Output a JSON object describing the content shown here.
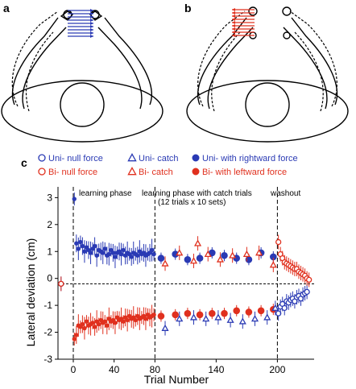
{
  "panels": {
    "a": {
      "letter": "a"
    },
    "b": {
      "letter": "b"
    },
    "c": {
      "letter": "c"
    }
  },
  "colors": {
    "blue": "#2a3ab4",
    "red": "#e0301e",
    "black": "#000000"
  },
  "legend": [
    {
      "label": "Uni- null force",
      "marker": "open-circle",
      "color": "#2a3ab4"
    },
    {
      "label": "Uni- catch",
      "marker": "open-triangle",
      "color": "#2a3ab4"
    },
    {
      "label": "Uni- with rightward force",
      "marker": "filled-circle",
      "color": "#2a3ab4"
    },
    {
      "label": "Bi- null force",
      "marker": "open-circle",
      "color": "#e0301e"
    },
    {
      "label": "Bi- catch",
      "marker": "open-triangle",
      "color": "#e0301e"
    },
    {
      "label": "Bi- with leftward force",
      "marker": "filled-circle",
      "color": "#e0301e"
    }
  ],
  "phases": {
    "learning": "learning phase",
    "catch_line1": "learning phase with catch trials",
    "catch_line2": "(12 trials x 10 sets)",
    "washout": "washout"
  },
  "chart_data": {
    "type": "scatter",
    "xlabel": "Trial Number",
    "ylabel": "Lateral deviation (cm)",
    "xlim": [
      -15,
      236
    ],
    "ylim": [
      -3,
      3.4
    ],
    "xticks": [
      0,
      40,
      80,
      140,
      200
    ],
    "yticks": [
      -3,
      -2,
      -1,
      0,
      1,
      2,
      3
    ],
    "reference_line_y": -0.2,
    "phase_boundaries_x": [
      0,
      80,
      200
    ],
    "series": [
      {
        "name": "Uni- with rightward force",
        "marker": "filled-circle",
        "color": "#2a3ab4",
        "size": "small",
        "points": [
          [
            1,
            2.95
          ],
          [
            3,
            1.3
          ],
          [
            5,
            1.1
          ],
          [
            7,
            1.35
          ],
          [
            9,
            1.2
          ],
          [
            11,
            1.0
          ],
          [
            13,
            1.15
          ],
          [
            15,
            1.05
          ],
          [
            17,
            0.95
          ],
          [
            19,
            1.1
          ],
          [
            21,
            1.2
          ],
          [
            23,
            0.85
          ],
          [
            25,
            1.05
          ],
          [
            27,
            1.0
          ],
          [
            29,
            0.95
          ],
          [
            31,
            1.1
          ],
          [
            33,
            0.85
          ],
          [
            35,
            0.9
          ],
          [
            37,
            1.05
          ],
          [
            39,
            0.95
          ],
          [
            41,
            0.8
          ],
          [
            43,
            0.95
          ],
          [
            45,
            1.0
          ],
          [
            47,
            0.9
          ],
          [
            49,
            1.05
          ],
          [
            51,
            0.85
          ],
          [
            53,
            0.95
          ],
          [
            55,
            0.9
          ],
          [
            57,
            0.8
          ],
          [
            59,
            0.95
          ],
          [
            61,
            0.9
          ],
          [
            63,
            0.85
          ],
          [
            65,
            1.0
          ],
          [
            67,
            0.9
          ],
          [
            69,
            0.95
          ],
          [
            71,
            0.85
          ],
          [
            73,
            0.9
          ],
          [
            75,
            0.95
          ],
          [
            77,
            1.05
          ],
          [
            79,
            0.9
          ]
        ]
      },
      {
        "name": "Bi- with leftward force",
        "marker": "filled-circle",
        "color": "#e0301e",
        "size": "small",
        "points": [
          [
            1,
            -2.25
          ],
          [
            3,
            -2.1
          ],
          [
            5,
            -1.75
          ],
          [
            7,
            -1.8
          ],
          [
            9,
            -1.7
          ],
          [
            11,
            -1.85
          ],
          [
            13,
            -1.6
          ],
          [
            15,
            -1.75
          ],
          [
            17,
            -1.7
          ],
          [
            19,
            -1.65
          ],
          [
            21,
            -1.8
          ],
          [
            23,
            -1.6
          ],
          [
            25,
            -1.7
          ],
          [
            27,
            -1.55
          ],
          [
            29,
            -1.65
          ],
          [
            31,
            -1.6
          ],
          [
            33,
            -1.75
          ],
          [
            35,
            -1.5
          ],
          [
            37,
            -1.6
          ],
          [
            39,
            -1.55
          ],
          [
            41,
            -1.65
          ],
          [
            43,
            -1.45
          ],
          [
            45,
            -1.55
          ],
          [
            47,
            -1.5
          ],
          [
            49,
            -1.6
          ],
          [
            51,
            -1.45
          ],
          [
            53,
            -1.55
          ],
          [
            55,
            -1.4
          ],
          [
            57,
            -1.5
          ],
          [
            59,
            -1.45
          ],
          [
            61,
            -1.55
          ],
          [
            63,
            -1.4
          ],
          [
            65,
            -1.5
          ],
          [
            67,
            -1.45
          ],
          [
            69,
            -1.4
          ],
          [
            71,
            -1.5
          ],
          [
            73,
            -1.35
          ],
          [
            75,
            -1.45
          ],
          [
            77,
            -1.4
          ],
          [
            79,
            -1.35
          ]
        ]
      },
      {
        "name": "Uni- with rightward force (catch phase)",
        "marker": "filled-circle",
        "color": "#2a3ab4",
        "size": "large",
        "points": [
          [
            86,
            0.75
          ],
          [
            100,
            0.9
          ],
          [
            112,
            0.7
          ],
          [
            124,
            0.75
          ],
          [
            136,
            0.95
          ],
          [
            148,
            0.85
          ],
          [
            160,
            0.75
          ],
          [
            172,
            0.7
          ],
          [
            184,
            0.95
          ],
          [
            196,
            0.8
          ]
        ]
      },
      {
        "name": "Bi- with leftward force (catch phase)",
        "marker": "filled-circle",
        "color": "#e0301e",
        "size": "large",
        "points": [
          [
            86,
            -1.4
          ],
          [
            100,
            -1.35
          ],
          [
            112,
            -1.3
          ],
          [
            124,
            -1.35
          ],
          [
            136,
            -1.3
          ],
          [
            148,
            -1.3
          ],
          [
            160,
            -1.2
          ],
          [
            172,
            -1.25
          ],
          [
            184,
            -1.2
          ],
          [
            196,
            -1.15
          ]
        ]
      },
      {
        "name": "Uni- catch",
        "marker": "open-triangle",
        "color": "#2a3ab4",
        "points": [
          [
            90,
            -1.85
          ],
          [
            104,
            -1.5
          ],
          [
            118,
            -1.45
          ],
          [
            130,
            -1.5
          ],
          [
            142,
            -1.45
          ],
          [
            154,
            -1.55
          ],
          [
            166,
            -1.6
          ],
          [
            178,
            -1.5
          ],
          [
            190,
            -1.45
          ],
          [
            198,
            -1.1
          ]
        ]
      },
      {
        "name": "Bi- catch",
        "marker": "open-triangle",
        "color": "#e0301e",
        "points": [
          [
            90,
            0.55
          ],
          [
            104,
            0.95
          ],
          [
            118,
            0.65
          ],
          [
            122,
            1.3
          ],
          [
            132,
            0.9
          ],
          [
            144,
            0.7
          ],
          [
            156,
            0.85
          ],
          [
            170,
            0.9
          ],
          [
            182,
            0.95
          ],
          [
            196,
            0.5
          ]
        ]
      },
      {
        "name": "Uni- null force",
        "marker": "open-circle",
        "color": "#2a3ab4",
        "points": [
          [
            -12,
            -0.2
          ],
          [
            201,
            -1.3
          ],
          [
            203,
            -1.05
          ],
          [
            205,
            -0.95
          ],
          [
            207,
            -1.1
          ],
          [
            209,
            -0.85
          ],
          [
            211,
            -0.9
          ],
          [
            213,
            -0.8
          ],
          [
            215,
            -0.75
          ],
          [
            217,
            -0.85
          ],
          [
            219,
            -0.7
          ],
          [
            221,
            -0.65
          ],
          [
            223,
            -0.75
          ],
          [
            225,
            -0.6
          ],
          [
            227,
            -0.55
          ],
          [
            229,
            -0.5
          ]
        ]
      },
      {
        "name": "Bi- null force",
        "marker": "open-circle",
        "color": "#e0301e",
        "points": [
          [
            -12,
            -0.2
          ],
          [
            201,
            1.35
          ],
          [
            203,
            0.9
          ],
          [
            205,
            0.75
          ],
          [
            207,
            0.6
          ],
          [
            209,
            0.55
          ],
          [
            211,
            0.5
          ],
          [
            213,
            0.45
          ],
          [
            215,
            0.4
          ],
          [
            217,
            0.35
          ],
          [
            219,
            0.35
          ],
          [
            221,
            0.25
          ],
          [
            223,
            0.2
          ],
          [
            225,
            0.15
          ],
          [
            227,
            0.1
          ],
          [
            229,
            0.0
          ],
          [
            231,
            -0.05
          ]
        ]
      }
    ]
  }
}
